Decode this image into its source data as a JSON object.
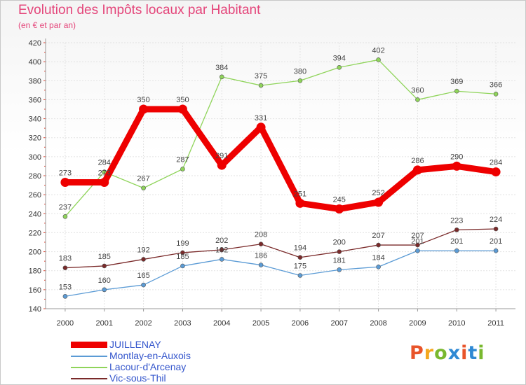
{
  "chart_data": {
    "type": "line",
    "title": "Evolution des Impôts locaux par Habitant",
    "subtitle": "(en € et par an)",
    "x": [
      "2000",
      "2001",
      "2002",
      "2003",
      "2004",
      "2005",
      "2006",
      "2007",
      "2008",
      "2009",
      "2010",
      "2011"
    ],
    "y_ticks": [
      "140",
      "160",
      "180",
      "200",
      "220",
      "240",
      "260",
      "280",
      "300",
      "320",
      "340",
      "360",
      "380",
      "400",
      "420"
    ],
    "ylim": [
      140,
      420
    ],
    "grid": true,
    "legend_position": "bottom-left",
    "series": [
      {
        "name": "Lacour-d'Arcenay",
        "color": "#8fd45a",
        "values": [
          237,
          284,
          267,
          287,
          384,
          375,
          380,
          394,
          402,
          360,
          369,
          366
        ]
      },
      {
        "name": "Vic-sous-Thil",
        "color": "#7a2a2a",
        "values": [
          183,
          185,
          192,
          199,
          202,
          208,
          194,
          200,
          207,
          207,
          223,
          224
        ]
      },
      {
        "name": "Montlay-en-Auxois",
        "color": "#5b9bd5",
        "values": [
          153,
          160,
          165,
          185,
          192,
          186,
          175,
          181,
          184,
          201,
          201,
          201
        ]
      },
      {
        "name": "JUILLENAY",
        "color": "#ee0000",
        "values": [
          273,
          273,
          350,
          350,
          291,
          331,
          251,
          245,
          252,
          286,
          290,
          284
        ]
      }
    ]
  },
  "legend": [
    {
      "name": "JUILLENAY",
      "color": "#ee0000"
    },
    {
      "name": "Montlay-en-Auxois",
      "color": "#5b9bd5"
    },
    {
      "name": "Lacour-d'Arcenay",
      "color": "#8fd45a"
    },
    {
      "name": "Vic-sous-Thil",
      "color": "#7a2a2a"
    }
  ],
  "logo": {
    "letters": [
      "P",
      "r",
      "o",
      "x",
      "i",
      "t",
      "i"
    ],
    "colors": [
      "#e8542a",
      "#f4a81e",
      "#79b82f",
      "#2f89d4",
      "#e8542a",
      "#2f89d4",
      "#79b82f"
    ]
  }
}
